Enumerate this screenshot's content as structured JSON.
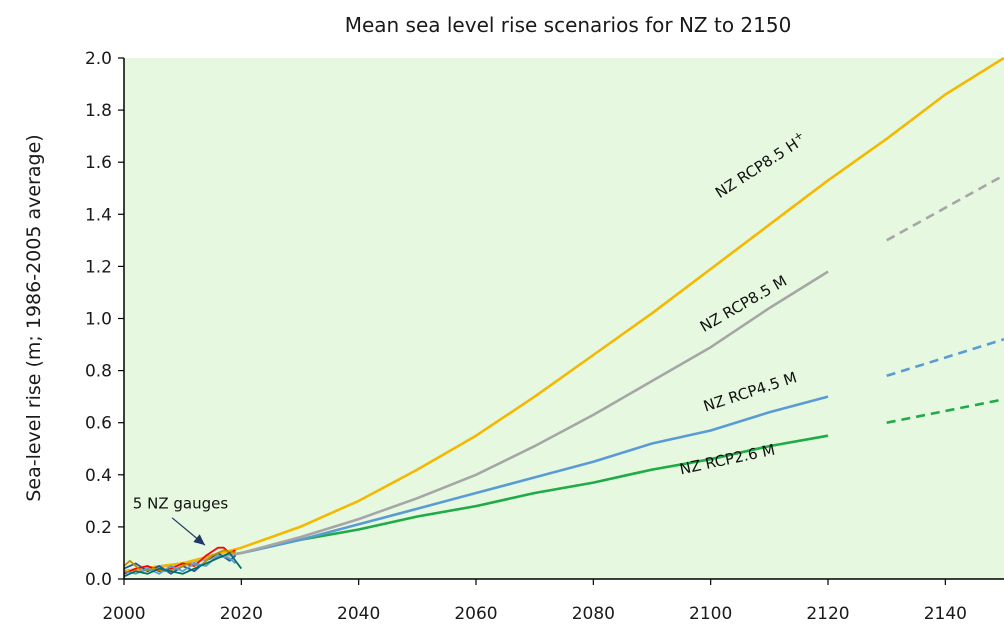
{
  "chart_data": {
    "type": "line",
    "title": "Mean sea level rise scenarios for NZ to 2150",
    "ylabel": "Sea-level rise (m; 1986-2005 average)",
    "xlabel": "",
    "xlim": [
      2000,
      2150
    ],
    "ylim": [
      0,
      2.0
    ],
    "x_ticks": [
      "2000",
      "2020",
      "2040",
      "2060",
      "2080",
      "2100",
      "2120",
      "2140"
    ],
    "y_ticks": [
      "0.0",
      "0.2",
      "0.4",
      "0.6",
      "0.8",
      "1.0",
      "1.2",
      "1.4",
      "1.6",
      "1.8",
      "2.0"
    ],
    "plot_background": "#e6f9e0",
    "series": [
      {
        "label": "NZ RCP8.5 H",
        "label_sup": "+",
        "color": "#f5b800",
        "points": [
          [
            2000,
            0.03
          ],
          [
            2010,
            0.06
          ],
          [
            2020,
            0.12
          ],
          [
            2030,
            0.2
          ],
          [
            2040,
            0.3
          ],
          [
            2050,
            0.42
          ],
          [
            2060,
            0.55
          ],
          [
            2070,
            0.7
          ],
          [
            2080,
            0.86
          ],
          [
            2090,
            1.02
          ],
          [
            2100,
            1.19
          ],
          [
            2110,
            1.36
          ],
          [
            2120,
            1.53
          ],
          [
            2130,
            1.69
          ],
          [
            2140,
            1.86
          ],
          [
            2150,
            2.0
          ]
        ]
      },
      {
        "label": "NZ RCP8.5 M",
        "color": "#a6a6a6",
        "points": [
          [
            2000,
            0.03
          ],
          [
            2010,
            0.06
          ],
          [
            2020,
            0.1
          ],
          [
            2030,
            0.16
          ],
          [
            2040,
            0.23
          ],
          [
            2050,
            0.31
          ],
          [
            2060,
            0.4
          ],
          [
            2070,
            0.51
          ],
          [
            2080,
            0.63
          ],
          [
            2090,
            0.76
          ],
          [
            2100,
            0.89
          ],
          [
            2110,
            1.04
          ],
          [
            2120,
            1.18
          ]
        ],
        "extension": [
          [
            2130,
            1.3
          ],
          [
            2150,
            1.55
          ]
        ]
      },
      {
        "label": "NZ RCP4.5 M",
        "color": "#5b9bd5",
        "points": [
          [
            2000,
            0.03
          ],
          [
            2010,
            0.06
          ],
          [
            2020,
            0.1
          ],
          [
            2030,
            0.15
          ],
          [
            2040,
            0.21
          ],
          [
            2050,
            0.27
          ],
          [
            2060,
            0.33
          ],
          [
            2070,
            0.39
          ],
          [
            2080,
            0.45
          ],
          [
            2090,
            0.52
          ],
          [
            2100,
            0.57
          ],
          [
            2110,
            0.64
          ],
          [
            2120,
            0.7
          ]
        ],
        "extension": [
          [
            2130,
            0.78
          ],
          [
            2150,
            0.92
          ]
        ]
      },
      {
        "label": "NZ RCP2.6 M",
        "color": "#1fab45",
        "points": [
          [
            2000,
            0.03
          ],
          [
            2010,
            0.06
          ],
          [
            2020,
            0.1
          ],
          [
            2030,
            0.15
          ],
          [
            2040,
            0.19
          ],
          [
            2050,
            0.24
          ],
          [
            2060,
            0.28
          ],
          [
            2070,
            0.33
          ],
          [
            2080,
            0.37
          ],
          [
            2090,
            0.42
          ],
          [
            2100,
            0.46
          ],
          [
            2110,
            0.51
          ],
          [
            2120,
            0.55
          ]
        ],
        "extension": [
          [
            2130,
            0.6
          ],
          [
            2150,
            0.69
          ]
        ]
      }
    ],
    "gauges": {
      "label": "5 NZ gauges",
      "series": [
        {
          "color": "#2f5597",
          "points": [
            [
              2000,
              0.04
            ],
            [
              2002,
              0.06
            ],
            [
              2004,
              0.03
            ],
            [
              2006,
              0.05
            ],
            [
              2008,
              0.02
            ],
            [
              2010,
              0.05
            ],
            [
              2012,
              0.03
            ],
            [
              2014,
              0.07
            ],
            [
              2016,
              0.1
            ],
            [
              2018,
              0.07
            ],
            [
              2019,
              0.09
            ]
          ]
        },
        {
          "color": "#ff0000",
          "points": [
            [
              2000,
              0.02
            ],
            [
              2002,
              0.04
            ],
            [
              2004,
              0.05
            ],
            [
              2006,
              0.03
            ],
            [
              2008,
              0.04
            ],
            [
              2010,
              0.06
            ],
            [
              2012,
              0.05
            ],
            [
              2014,
              0.09
            ],
            [
              2016,
              0.12
            ],
            [
              2017,
              0.12
            ],
            [
              2018,
              0.1
            ],
            [
              2019,
              0.11
            ]
          ]
        },
        {
          "color": "#bf9000",
          "points": [
            [
              2000,
              0.05
            ],
            [
              2001,
              0.07
            ],
            [
              2003,
              0.03
            ],
            [
              2005,
              0.04
            ],
            [
              2007,
              0.03
            ],
            [
              2009,
              0.04
            ],
            [
              2011,
              0.06
            ],
            [
              2013,
              0.05
            ],
            [
              2015,
              0.09
            ],
            [
              2017,
              0.11
            ],
            [
              2019,
              0.1
            ]
          ]
        },
        {
          "color": "#5b9bd5",
          "points": [
            [
              2000,
              0.03
            ],
            [
              2002,
              0.02
            ],
            [
              2004,
              0.04
            ],
            [
              2006,
              0.02
            ],
            [
              2008,
              0.05
            ],
            [
              2010,
              0.03
            ],
            [
              2012,
              0.06
            ],
            [
              2014,
              0.05
            ],
            [
              2016,
              0.09
            ],
            [
              2018,
              0.08
            ],
            [
              2019,
              0.06
            ]
          ]
        },
        {
          "color": "#00706b",
          "points": [
            [
              2000,
              0.01
            ],
            [
              2002,
              0.03
            ],
            [
              2004,
              0.02
            ],
            [
              2006,
              0.04
            ],
            [
              2008,
              0.03
            ],
            [
              2010,
              0.02
            ],
            [
              2012,
              0.04
            ],
            [
              2014,
              0.06
            ],
            [
              2016,
              0.08
            ],
            [
              2018,
              0.1
            ],
            [
              2020,
              0.04
            ]
          ]
        }
      ]
    }
  }
}
